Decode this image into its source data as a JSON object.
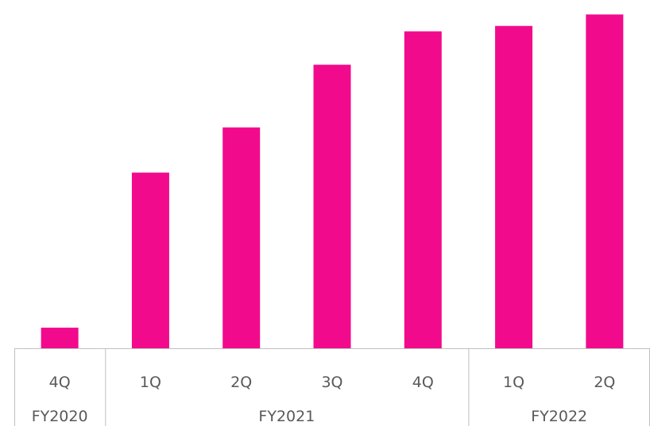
{
  "chart_data": {
    "type": "bar",
    "title": "",
    "xlabel": "",
    "ylabel": "",
    "grid": false,
    "legend": "none",
    "groups": [
      {
        "label": "FY2020",
        "count": 1
      },
      {
        "label": "FY2021",
        "count": 4
      },
      {
        "label": "FY2022",
        "count": 2
      }
    ],
    "categories": [
      "4Q",
      "1Q",
      "2Q",
      "3Q",
      "4Q",
      "1Q",
      "2Q"
    ],
    "values": [
      6.1,
      52.1,
      65.5,
      84.1,
      94.0,
      95.6,
      99.0
    ],
    "ylim": [
      0,
      100
    ],
    "bar_color": "#F20A8C",
    "axis_color": "#BFBFBF",
    "text_color": "#595959"
  }
}
